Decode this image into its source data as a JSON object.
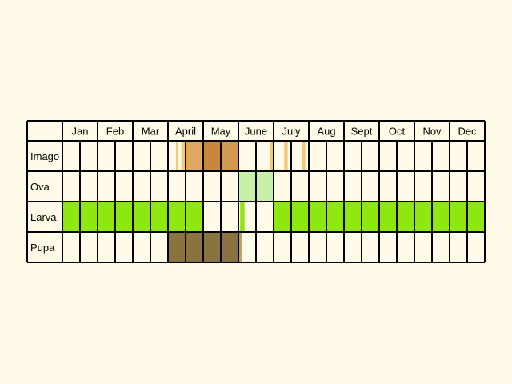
{
  "chart_data": {
    "type": "table",
    "months": [
      "Jan",
      "Feb",
      "Mar",
      "April",
      "May",
      "June",
      "July",
      "Aug",
      "Sept",
      "Oct",
      "Nov",
      "Dec"
    ],
    "subdivisions_per_month": 2,
    "stages": [
      {
        "name": "Imago",
        "bands": [
          {
            "start": 6.45,
            "end": 6.55,
            "color": "#f5c878"
          },
          {
            "start": 6.75,
            "end": 9.5,
            "color": "#f3ce7c"
          },
          {
            "start": 7.0,
            "end": 10.0,
            "color": "#e0a860"
          },
          {
            "start": 8.0,
            "end": 9.0,
            "color": "#c8883a"
          },
          {
            "start": 9.0,
            "end": 10.0,
            "color": "#d49a52"
          },
          {
            "start": 11.8,
            "end": 12.0,
            "color": "#f5c878"
          },
          {
            "start": 12.6,
            "end": 12.8,
            "color": "#f5c878"
          },
          {
            "start": 13.6,
            "end": 13.8,
            "color": "#f5c878"
          }
        ]
      },
      {
        "name": "Ova",
        "bands": [
          {
            "start": 10.0,
            "end": 12.0,
            "color": "#c8f0a8"
          }
        ]
      },
      {
        "name": "Larva",
        "bands": [
          {
            "start": 0.0,
            "end": 8.0,
            "color": "#8ee810"
          },
          {
            "start": 10.1,
            "end": 10.35,
            "color": "#8ee810"
          },
          {
            "start": 12.0,
            "end": 24.0,
            "color": "#8ee810"
          }
        ]
      },
      {
        "name": "Pupa",
        "bands": [
          {
            "start": 6.0,
            "end": 10.0,
            "color": "#8b7340"
          },
          {
            "start": 10.0,
            "end": 10.2,
            "color": "#b8a070"
          }
        ]
      }
    ]
  }
}
